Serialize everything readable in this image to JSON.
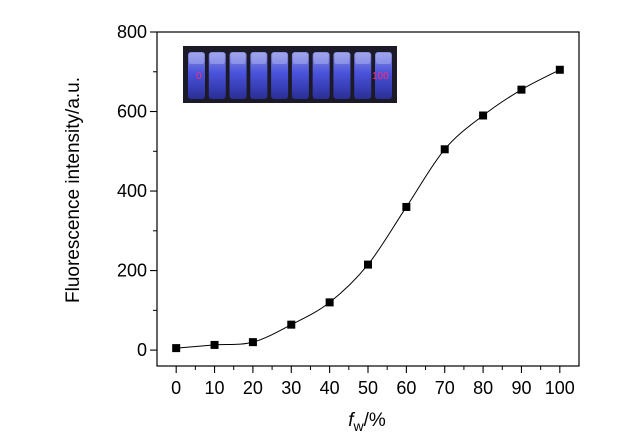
{
  "chart_data": {
    "type": "line",
    "x": [
      0,
      10,
      20,
      30,
      40,
      50,
      60,
      70,
      80,
      90,
      100
    ],
    "series": [
      {
        "values": [
          5,
          13,
          20,
          64,
          120,
          215,
          360,
          505,
          590,
          655,
          705
        ]
      }
    ],
    "xticks": [
      "0",
      "10",
      "20",
      "30",
      "40",
      "50",
      "60",
      "70",
      "80",
      "90",
      "100"
    ],
    "yticks": [
      "0",
      "200",
      "400",
      "600",
      "800"
    ],
    "xlim": [
      -5,
      105
    ],
    "ylim": [
      -40,
      800
    ],
    "ylabel": "Fluorescence intensity/a.u.",
    "xlabel": {
      "base": "f",
      "sub": "w",
      "suffix": "/%"
    },
    "marker": "square",
    "line_color": "#000000",
    "marker_color": "#000000",
    "grid": false,
    "inset": {
      "left_label": "0",
      "right_label": "100",
      "vial_count": 10,
      "background": "#1c1a26",
      "glow_color": "#5a63ff"
    }
  }
}
